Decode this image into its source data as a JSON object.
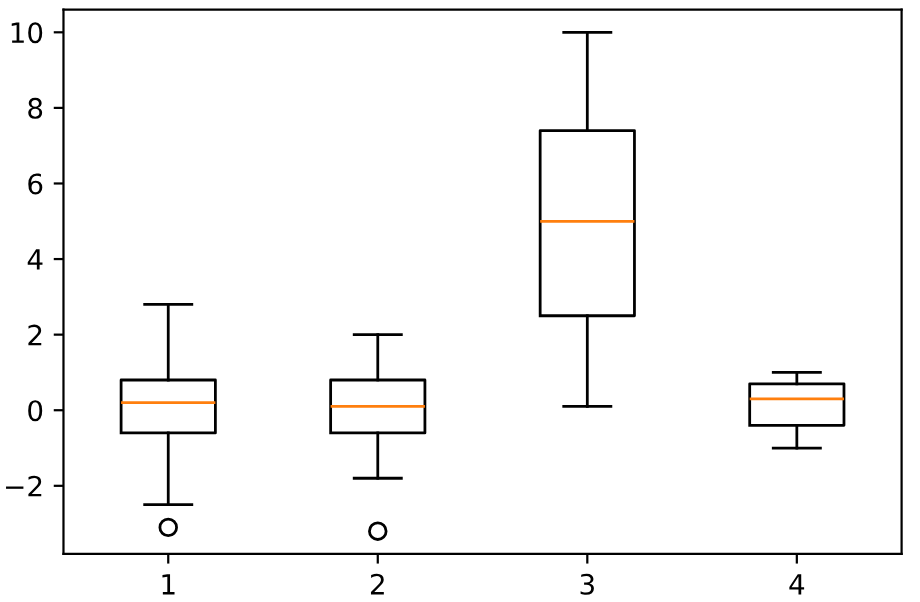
{
  "chart_data": {
    "type": "box",
    "categories": [
      "1",
      "2",
      "3",
      "4"
    ],
    "boxes": [
      {
        "low": -2.5,
        "q1": -0.6,
        "median": 0.2,
        "q3": 0.8,
        "high": 2.8,
        "outliers": [
          -3.1
        ]
      },
      {
        "low": -1.8,
        "q1": -0.6,
        "median": 0.1,
        "q3": 0.8,
        "high": 2.0,
        "outliers": [
          -3.2
        ]
      },
      {
        "low": 0.1,
        "q1": 2.5,
        "median": 5.0,
        "q3": 7.4,
        "high": 10.0
      },
      {
        "low": -1.0,
        "q1": -0.4,
        "median": 0.3,
        "q3": 0.7,
        "high": 1.0
      }
    ],
    "ylim": [
      -3.8,
      10.6
    ],
    "yticks": [
      {
        "value": -2,
        "label": "−2"
      },
      0,
      2,
      4,
      6,
      8,
      10
    ],
    "grid": false
  }
}
